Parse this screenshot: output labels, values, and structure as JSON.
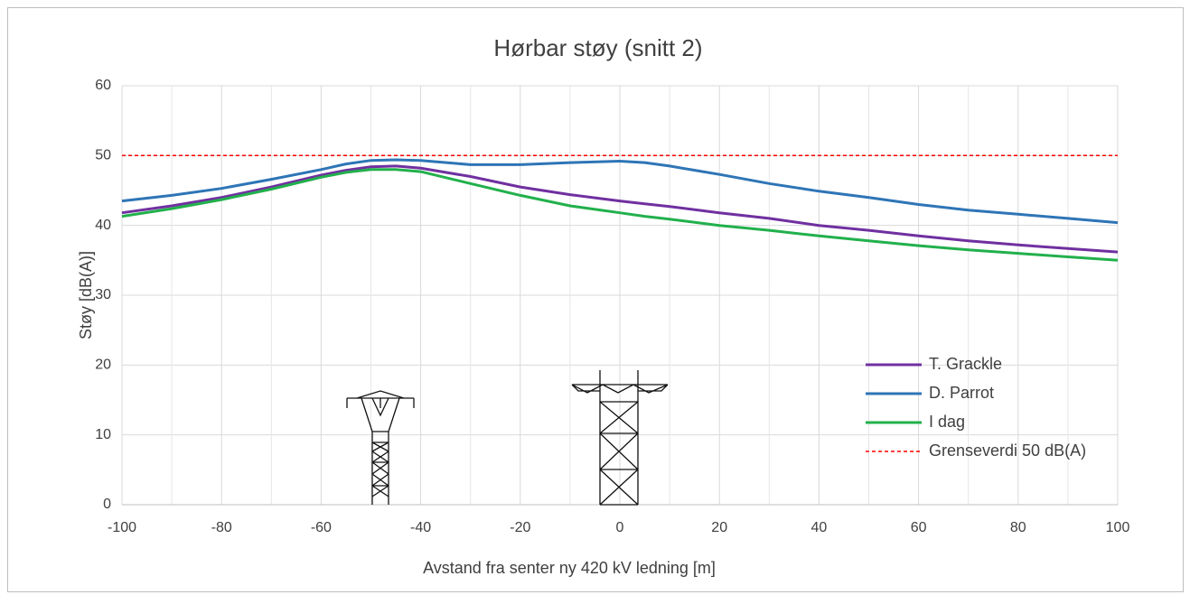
{
  "chart_data": {
    "type": "line",
    "title": "Hørbar støy (snitt 2)",
    "x_label": "Avstand fra senter ny 420 kV ledning [m]",
    "y_label": "Støy [dB(A)]",
    "x": [
      -100,
      -90,
      -80,
      -70,
      -60,
      -55,
      -50,
      -45,
      -40,
      -30,
      -20,
      -10,
      0,
      5,
      10,
      20,
      30,
      40,
      50,
      60,
      70,
      80,
      90,
      100
    ],
    "series": [
      {
        "name": "T. Grackle",
        "color": "#7030a0",
        "values": [
          41.8,
          42.8,
          44,
          45.5,
          47.2,
          47.9,
          48.4,
          48.5,
          48.2,
          47,
          45.5,
          44.4,
          43.5,
          43.1,
          42.7,
          41.8,
          41,
          40,
          39.3,
          38.5,
          37.8,
          37.2,
          36.7,
          36.2
        ]
      },
      {
        "name": "D. Parrot",
        "color": "#2e75b6",
        "values": [
          43.5,
          44.3,
          45.3,
          46.6,
          48,
          48.8,
          49.3,
          49.4,
          49.3,
          48.7,
          48.7,
          49,
          49.2,
          49,
          48.5,
          47.3,
          46,
          44.9,
          44,
          43,
          42.2,
          41.6,
          41,
          40.4
        ]
      },
      {
        "name": "I dag",
        "color": "#22b04c",
        "values": [
          41.3,
          42.4,
          43.7,
          45.2,
          46.9,
          47.6,
          48,
          48,
          47.7,
          46,
          44.3,
          42.8,
          41.8,
          41.3,
          40.9,
          40,
          39.3,
          38.5,
          37.8,
          37.1,
          36.5,
          36,
          35.5,
          35
        ]
      },
      {
        "name": "Grenseverdi 50 dB(A)",
        "color": "#ff0000",
        "dashed": true,
        "values": [
          50,
          50,
          50,
          50,
          50,
          50,
          50,
          50,
          50,
          50,
          50,
          50,
          50,
          50,
          50,
          50,
          50,
          50,
          50,
          50,
          50,
          50,
          50,
          50
        ]
      }
    ],
    "xlim": [
      -100,
      100
    ],
    "xticks": [
      -100,
      -80,
      -60,
      -40,
      -20,
      0,
      20,
      40,
      60,
      80,
      100
    ],
    "ylim": [
      0,
      60
    ],
    "yticks": [
      0,
      10,
      20,
      30,
      40,
      50,
      60
    ],
    "grid": true,
    "legend": "right"
  }
}
